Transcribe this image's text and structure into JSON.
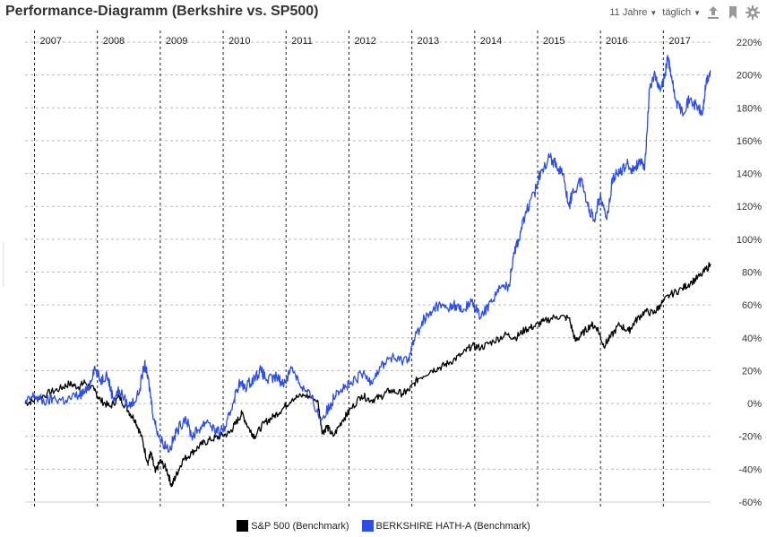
{
  "header": {
    "title": "Performance-Diagramm (Berkshire vs. SP500)",
    "range_label": "11 Jahre",
    "interval_label": "täglich",
    "icons": [
      "upload-icon",
      "bookmark-icon",
      "gear-icon"
    ]
  },
  "colors": {
    "sp500": "#000000",
    "berkshire": "#2b4ee8",
    "grid": "#bbbbbb"
  },
  "chart_data": {
    "type": "line",
    "title": "Performance-Diagramm (Berkshire vs. SP500)",
    "x_years": [
      "2007",
      "2008",
      "2009",
      "2010",
      "2011",
      "2012",
      "2013",
      "2014",
      "2015",
      "2016",
      "2017"
    ],
    "y_ticks": [
      "220%",
      "200%",
      "180%",
      "160%",
      "140%",
      "120%",
      "100%",
      "80%",
      "60%",
      "40%",
      "20%",
      "0%",
      "-20%",
      "-40%",
      "-60%"
    ],
    "ylim": [
      -60,
      220
    ],
    "xlim": [
      2006.85,
      2017.75
    ],
    "grid": true,
    "legend_position": "bottom",
    "series": [
      {
        "name": "S&P 500  (Benchmark)",
        "color": "#000000",
        "points": [
          [
            2006.85,
            0
          ],
          [
            2007.0,
            2
          ],
          [
            2007.2,
            6
          ],
          [
            2007.4,
            9
          ],
          [
            2007.55,
            12
          ],
          [
            2007.7,
            10
          ],
          [
            2007.8,
            13
          ],
          [
            2007.95,
            8
          ],
          [
            2008.05,
            2
          ],
          [
            2008.2,
            -2
          ],
          [
            2008.35,
            4
          ],
          [
            2008.5,
            -5
          ],
          [
            2008.6,
            -10
          ],
          [
            2008.7,
            -20
          ],
          [
            2008.8,
            -36
          ],
          [
            2008.85,
            -30
          ],
          [
            2008.92,
            -42
          ],
          [
            2009.0,
            -35
          ],
          [
            2009.1,
            -40
          ],
          [
            2009.18,
            -50
          ],
          [
            2009.25,
            -44
          ],
          [
            2009.35,
            -35
          ],
          [
            2009.5,
            -30
          ],
          [
            2009.65,
            -25
          ],
          [
            2009.8,
            -22
          ],
          [
            2009.95,
            -20
          ],
          [
            2010.1,
            -18
          ],
          [
            2010.2,
            -12
          ],
          [
            2010.3,
            -6
          ],
          [
            2010.42,
            -16
          ],
          [
            2010.5,
            -20
          ],
          [
            2010.65,
            -12
          ],
          [
            2010.8,
            -8
          ],
          [
            2010.95,
            -3
          ],
          [
            2011.1,
            3
          ],
          [
            2011.3,
            5
          ],
          [
            2011.5,
            2
          ],
          [
            2011.58,
            -18
          ],
          [
            2011.65,
            -14
          ],
          [
            2011.75,
            -20
          ],
          [
            2011.9,
            -10
          ],
          [
            2012.0,
            -5
          ],
          [
            2012.2,
            5
          ],
          [
            2012.35,
            2
          ],
          [
            2012.5,
            4
          ],
          [
            2012.65,
            8
          ],
          [
            2012.85,
            6
          ],
          [
            2012.95,
            8
          ],
          [
            2013.1,
            15
          ],
          [
            2013.3,
            20
          ],
          [
            2013.45,
            22
          ],
          [
            2013.6,
            25
          ],
          [
            2013.8,
            30
          ],
          [
            2013.95,
            35
          ],
          [
            2014.1,
            34
          ],
          [
            2014.3,
            38
          ],
          [
            2014.5,
            42
          ],
          [
            2014.65,
            40
          ],
          [
            2014.8,
            45
          ],
          [
            2014.95,
            47
          ],
          [
            2015.1,
            50
          ],
          [
            2015.3,
            53
          ],
          [
            2015.5,
            52
          ],
          [
            2015.6,
            38
          ],
          [
            2015.7,
            42
          ],
          [
            2015.85,
            48
          ],
          [
            2015.95,
            46
          ],
          [
            2016.05,
            35
          ],
          [
            2016.15,
            40
          ],
          [
            2016.3,
            48
          ],
          [
            2016.45,
            44
          ],
          [
            2016.55,
            50
          ],
          [
            2016.7,
            56
          ],
          [
            2016.85,
            55
          ],
          [
            2016.95,
            60
          ],
          [
            2017.1,
            66
          ],
          [
            2017.3,
            70
          ],
          [
            2017.45,
            74
          ],
          [
            2017.6,
            78
          ],
          [
            2017.75,
            85
          ]
        ]
      },
      {
        "name": "BERKSHIRE HATH-A (Benchmark)",
        "color": "#2b4ee8",
        "points": [
          [
            2006.85,
            0
          ],
          [
            2007.0,
            5
          ],
          [
            2007.15,
            1
          ],
          [
            2007.3,
            3
          ],
          [
            2007.5,
            2
          ],
          [
            2007.7,
            5
          ],
          [
            2007.85,
            8
          ],
          [
            2007.95,
            22
          ],
          [
            2008.05,
            14
          ],
          [
            2008.15,
            18
          ],
          [
            2008.25,
            3
          ],
          [
            2008.35,
            8
          ],
          [
            2008.5,
            -2
          ],
          [
            2008.65,
            5
          ],
          [
            2008.75,
            24
          ],
          [
            2008.82,
            12
          ],
          [
            2008.9,
            -10
          ],
          [
            2009.0,
            -22
          ],
          [
            2009.15,
            -28
          ],
          [
            2009.25,
            -18
          ],
          [
            2009.4,
            -8
          ],
          [
            2009.5,
            -20
          ],
          [
            2009.6,
            -16
          ],
          [
            2009.75,
            -10
          ],
          [
            2009.9,
            -18
          ],
          [
            2010.05,
            -14
          ],
          [
            2010.15,
            0
          ],
          [
            2010.25,
            12
          ],
          [
            2010.35,
            10
          ],
          [
            2010.5,
            16
          ],
          [
            2010.6,
            20
          ],
          [
            2010.7,
            14
          ],
          [
            2010.85,
            16
          ],
          [
            2010.95,
            12
          ],
          [
            2011.1,
            22
          ],
          [
            2011.25,
            10
          ],
          [
            2011.4,
            4
          ],
          [
            2011.55,
            -10
          ],
          [
            2011.7,
            -2
          ],
          [
            2011.8,
            8
          ],
          [
            2011.95,
            10
          ],
          [
            2012.05,
            12
          ],
          [
            2012.2,
            18
          ],
          [
            2012.35,
            14
          ],
          [
            2012.5,
            22
          ],
          [
            2012.65,
            28
          ],
          [
            2012.8,
            26
          ],
          [
            2012.95,
            28
          ],
          [
            2013.05,
            40
          ],
          [
            2013.2,
            52
          ],
          [
            2013.3,
            54
          ],
          [
            2013.4,
            60
          ],
          [
            2013.55,
            58
          ],
          [
            2013.7,
            60
          ],
          [
            2013.8,
            56
          ],
          [
            2013.95,
            62
          ],
          [
            2014.1,
            52
          ],
          [
            2014.25,
            62
          ],
          [
            2014.4,
            70
          ],
          [
            2014.55,
            72
          ],
          [
            2014.62,
            92
          ],
          [
            2014.7,
            100
          ],
          [
            2014.8,
            115
          ],
          [
            2014.95,
            128
          ],
          [
            2015.05,
            142
          ],
          [
            2015.2,
            150
          ],
          [
            2015.3,
            145
          ],
          [
            2015.4,
            140
          ],
          [
            2015.5,
            120
          ],
          [
            2015.55,
            128
          ],
          [
            2015.7,
            136
          ],
          [
            2015.8,
            120
          ],
          [
            2015.9,
            112
          ],
          [
            2016.0,
            128
          ],
          [
            2016.1,
            112
          ],
          [
            2016.2,
            138
          ],
          [
            2016.3,
            140
          ],
          [
            2016.42,
            146
          ],
          [
            2016.52,
            142
          ],
          [
            2016.62,
            148
          ],
          [
            2016.7,
            142
          ],
          [
            2016.78,
            192
          ],
          [
            2016.85,
            200
          ],
          [
            2016.95,
            190
          ],
          [
            2017.02,
            198
          ],
          [
            2017.07,
            212
          ],
          [
            2017.12,
            200
          ],
          [
            2017.2,
            184
          ],
          [
            2017.3,
            178
          ],
          [
            2017.42,
            185
          ],
          [
            2017.55,
            180
          ],
          [
            2017.62,
            176
          ],
          [
            2017.68,
            195
          ],
          [
            2017.75,
            202
          ]
        ]
      }
    ]
  },
  "legend": {
    "sp500_label": "S&P 500  (Benchmark)",
    "berkshire_label": "BERKSHIRE HATH-A (Benchmark)"
  }
}
